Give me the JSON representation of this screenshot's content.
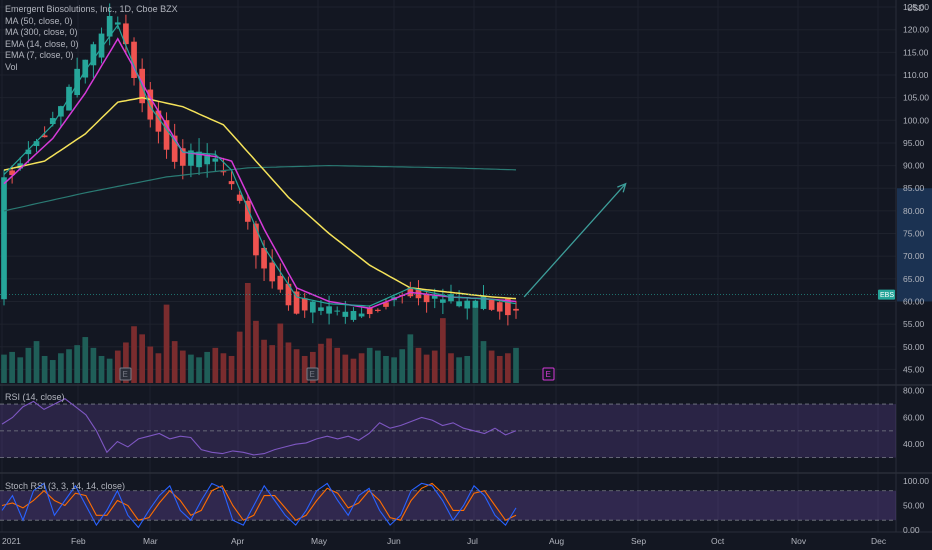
{
  "chart_data": {
    "type": "candlestick",
    "title": "Emergent Biosolutions, Inc., 1D, Cboe BZX",
    "currency": "USD",
    "last_price_label": "EBS",
    "legend": [
      "MA (50, close, 0)",
      "MA (300, close, 0)",
      "EMA (14, close, 0)",
      "EMA (7, close, 0)",
      "Vol"
    ],
    "x_tick_labels": [
      "2021",
      "Feb",
      "Mar",
      "Apr",
      "May",
      "Jun",
      "Jul",
      "Aug",
      "Sep",
      "Oct",
      "Nov",
      "Dec"
    ],
    "price_axis": {
      "ylim": [
        42,
        127
      ],
      "ticks": [
        125,
        120,
        115,
        110,
        105,
        100,
        95,
        90,
        85,
        80,
        75,
        70,
        65,
        60,
        55,
        50,
        45
      ],
      "tick_labels": [
        "125.00",
        "120.00",
        "115.00",
        "110.00",
        "105.00",
        "100.00",
        "95.00",
        "90.00",
        "85.00",
        "80.00",
        "75.00",
        "70.00",
        "65.00",
        "60.00",
        "55.00",
        "50.00",
        "45.00"
      ],
      "highlight_range": [
        60,
        85
      ]
    },
    "price_path": [
      [
        0,
        87
      ],
      [
        6,
        100
      ],
      [
        10,
        112
      ],
      [
        14,
        124
      ],
      [
        18,
        104
      ],
      [
        22,
        92
      ],
      [
        26,
        93
      ],
      [
        28,
        88
      ],
      [
        32,
        70
      ],
      [
        36,
        60
      ],
      [
        40,
        59
      ],
      [
        45,
        58
      ],
      [
        50,
        64
      ],
      [
        55,
        61
      ],
      [
        60,
        61
      ],
      [
        63,
        59
      ],
      [
        64,
        61.5
      ]
    ],
    "ema7_path": [
      [
        0,
        88
      ],
      [
        6,
        99
      ],
      [
        10,
        111
      ],
      [
        14,
        121
      ],
      [
        18,
        103
      ],
      [
        22,
        93
      ],
      [
        26,
        92.5
      ],
      [
        28,
        89
      ],
      [
        32,
        72
      ],
      [
        36,
        61
      ],
      [
        40,
        59.5
      ],
      [
        45,
        59
      ],
      [
        50,
        63
      ],
      [
        55,
        61
      ],
      [
        60,
        60.5
      ],
      [
        63,
        59.5
      ],
      [
        64,
        60.5
      ]
    ],
    "ema14_path": [
      [
        0,
        86
      ],
      [
        6,
        96
      ],
      [
        10,
        106
      ],
      [
        14,
        118
      ],
      [
        18,
        105
      ],
      [
        22,
        93
      ],
      [
        26,
        92
      ],
      [
        28,
        91
      ],
      [
        32,
        76
      ],
      [
        36,
        63
      ],
      [
        40,
        60
      ],
      [
        45,
        58.5
      ],
      [
        50,
        62
      ],
      [
        55,
        61
      ],
      [
        60,
        60.5
      ],
      [
        63,
        60
      ],
      [
        64,
        60.5
      ]
    ],
    "ma50_path": [
      [
        0,
        89
      ],
      [
        5,
        91
      ],
      [
        10,
        97
      ],
      [
        14,
        104
      ],
      [
        17,
        105
      ],
      [
        22,
        103
      ],
      [
        27,
        99
      ],
      [
        31,
        91
      ],
      [
        35,
        83
      ],
      [
        40,
        75
      ],
      [
        45,
        68
      ],
      [
        50,
        63
      ],
      [
        55,
        62
      ],
      [
        60,
        61
      ],
      [
        64,
        60.5
      ]
    ],
    "ma300_path": [
      [
        0,
        80
      ],
      [
        10,
        84
      ],
      [
        20,
        87.5
      ],
      [
        30,
        89.5
      ],
      [
        40,
        90
      ],
      [
        55,
        89.5
      ],
      [
        64,
        89
      ]
    ],
    "projection_arrow": {
      "from": [
        64,
        61
      ],
      "to": [
        76,
        86
      ]
    },
    "volume": [
      2.1,
      2.3,
      1.9,
      2.6,
      3.1,
      2.0,
      1.7,
      2.2,
      2.5,
      2.8,
      3.4,
      2.6,
      2.0,
      1.8,
      2.4,
      3.0,
      4.2,
      3.6,
      2.7,
      2.2,
      5.8,
      3.1,
      2.4,
      2.1,
      1.9,
      2.3,
      2.6,
      2.2,
      2.0,
      3.8,
      7.4,
      4.6,
      3.2,
      2.8,
      4.4,
      3.0,
      2.5,
      2.0,
      2.3,
      2.9,
      3.3,
      2.6,
      2.1,
      1.8,
      2.2,
      2.6,
      2.4,
      2.0,
      1.9,
      2.5,
      3.6,
      2.6,
      2.1,
      2.4,
      4.8,
      2.2,
      1.9,
      2.0,
      5.6,
      3.1,
      2.4,
      2.0,
      2.2,
      2.6
    ],
    "rsi": {
      "label": "RSI (14, close)",
      "ylim": [
        20,
        82
      ],
      "ticks": [
        80,
        60,
        40
      ],
      "tick_labels": [
        "80.00",
        "60.00",
        "40.00"
      ],
      "bands": [
        70,
        50,
        30
      ],
      "values": [
        55,
        60,
        68,
        72,
        66,
        70,
        74,
        68,
        62,
        50,
        34,
        42,
        38,
        44,
        46,
        48,
        44,
        46,
        45,
        36,
        34,
        33,
        35,
        34,
        32,
        33,
        36,
        38,
        40,
        41,
        44,
        46,
        44,
        46,
        43,
        48,
        56,
        52,
        54,
        57,
        60,
        58,
        54,
        56,
        52,
        50,
        48,
        52,
        47,
        50
      ]
    },
    "stoch": {
      "label": "Stoch RSI (3, 3, 14, 14, close)",
      "ylim": [
        0,
        110
      ],
      "ticks": [
        100,
        50,
        0
      ],
      "tick_labels": [
        "100.00",
        "50.00",
        "0.00"
      ],
      "bands": [
        80,
        20
      ],
      "k": [
        40,
        70,
        20,
        80,
        95,
        30,
        60,
        90,
        50,
        10,
        40,
        80,
        30,
        5,
        40,
        70,
        90,
        40,
        20,
        60,
        95,
        85,
        20,
        10,
        50,
        90,
        60,
        30,
        10,
        40,
        80,
        95,
        60,
        30,
        70,
        85,
        40,
        10,
        30,
        80,
        95,
        90,
        60,
        20,
        50,
        90,
        70,
        30,
        10,
        45
      ],
      "d": [
        50,
        55,
        45,
        60,
        80,
        60,
        50,
        75,
        70,
        30,
        30,
        60,
        50,
        20,
        25,
        55,
        80,
        60,
        30,
        40,
        80,
        90,
        50,
        20,
        30,
        70,
        70,
        45,
        20,
        30,
        60,
        85,
        75,
        45,
        55,
        80,
        60,
        25,
        20,
        60,
        85,
        95,
        75,
        40,
        40,
        75,
        80,
        50,
        20,
        30
      ]
    }
  }
}
